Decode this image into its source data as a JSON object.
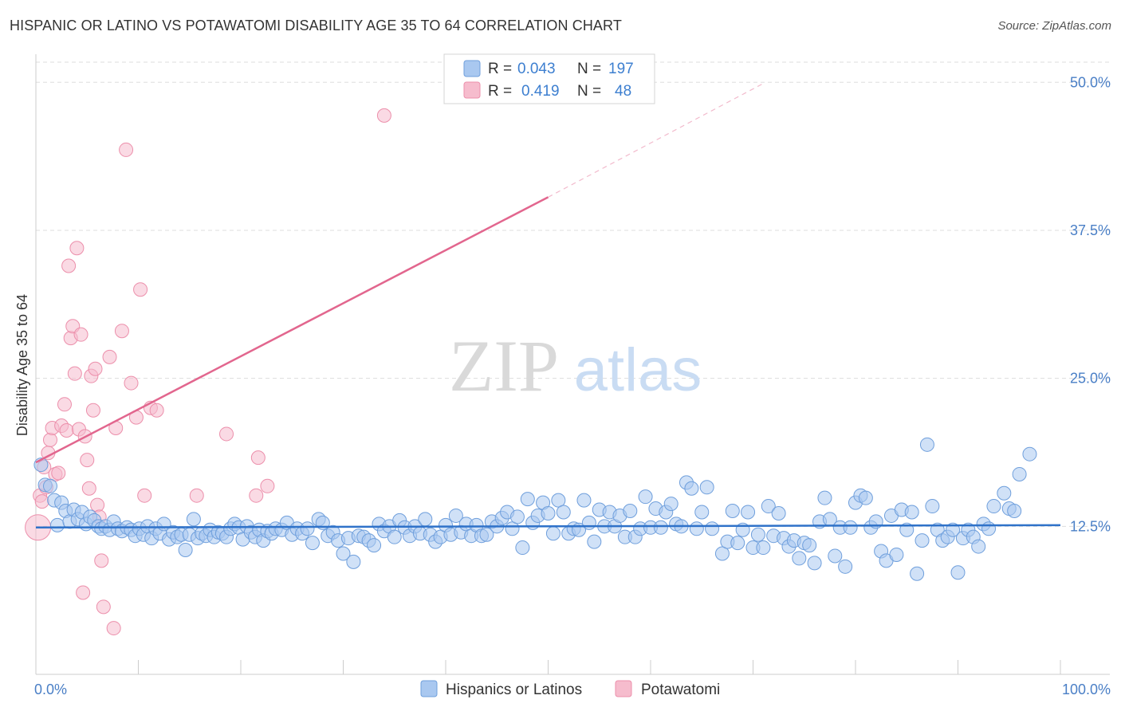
{
  "title": "HISPANIC OR LATINO VS POTAWATOMI DISABILITY AGE 35 TO 64 CORRELATION CHART",
  "source": "Source: ZipAtlas.com",
  "watermark": {
    "zip": "ZIP",
    "atlas": "atlas"
  },
  "colors": {
    "blue_fill": "#a9c8f0",
    "blue_stroke": "#6f9fdc",
    "blue_line": "#2f72c9",
    "pink_fill": "#f6bccd",
    "pink_stroke": "#ec8fab",
    "pink_line": "#e2668e",
    "tick_text": "#4a7fc6",
    "grid": "#dddddd"
  },
  "legend": {
    "r_label": "R =",
    "n_label": "N =",
    "rows": [
      {
        "r": "0.043",
        "n": "197"
      },
      {
        "r": "0.419",
        "n": "48"
      }
    ]
  },
  "bottom_legend": [
    "Hispanics or Latinos",
    "Potawatomi"
  ],
  "chart_data": {
    "type": "scatter",
    "ylabel": "Disability Age 35 to 64",
    "xlim": [
      0,
      100
    ],
    "ylim": [
      0,
      51.7
    ],
    "x_tick_labels": [
      {
        "value": 0,
        "label": "0.0%"
      },
      {
        "value": 100,
        "label": "100.0%"
      }
    ],
    "y_ticks": [
      {
        "value": 12.5,
        "label": "12.5%"
      },
      {
        "value": 25.0,
        "label": "25.0%"
      },
      {
        "value": 37.5,
        "label": "37.5%"
      },
      {
        "value": 50.0,
        "label": "50.0%"
      }
    ],
    "grid": true,
    "series": [
      {
        "name": "Hispanics or Latinos",
        "trend": {
          "x": [
            0,
            100
          ],
          "y": [
            12.4,
            12.6
          ]
        },
        "points": [
          [
            0.5,
            17.7
          ],
          [
            0.9,
            16
          ],
          [
            1.4,
            15.9
          ],
          [
            1.8,
            14.7
          ],
          [
            2.1,
            12.6
          ],
          [
            2.5,
            14.5
          ],
          [
            2.9,
            13.8
          ],
          [
            3.3,
            12.9
          ],
          [
            3.7,
            13.9
          ],
          [
            4.1,
            13.1
          ],
          [
            4.5,
            13.7
          ],
          [
            4.9,
            12.7
          ],
          [
            5.3,
            13.3
          ],
          [
            5.7,
            13
          ],
          [
            6.1,
            12.5
          ],
          [
            6.4,
            12.3
          ],
          [
            6.8,
            12.5
          ],
          [
            7.2,
            12.2
          ],
          [
            7.6,
            12.9
          ],
          [
            8.0,
            12.3
          ],
          [
            8.4,
            12.1
          ],
          [
            8.9,
            12.4
          ],
          [
            9.3,
            12.2
          ],
          [
            9.7,
            11.7
          ],
          [
            10.1,
            12.3
          ],
          [
            10.5,
            11.8
          ],
          [
            10.9,
            12.5
          ],
          [
            11.3,
            11.5
          ],
          [
            11.7,
            12.3
          ],
          [
            12.1,
            11.9
          ],
          [
            12.5,
            12.7
          ],
          [
            13.0,
            11.4
          ],
          [
            13.4,
            12
          ],
          [
            13.8,
            11.6
          ],
          [
            14.2,
            11.8
          ],
          [
            14.6,
            10.5
          ],
          [
            15.0,
            11.8
          ],
          [
            15.4,
            13.1
          ],
          [
            15.8,
            11.5
          ],
          [
            16.2,
            11.9
          ],
          [
            16.6,
            11.7
          ],
          [
            17.0,
            12.2
          ],
          [
            17.4,
            11.6
          ],
          [
            17.8,
            12
          ],
          [
            18.2,
            11.9
          ],
          [
            18.6,
            11.6
          ],
          [
            19.0,
            12.3
          ],
          [
            19.4,
            12.7
          ],
          [
            19.8,
            12.4
          ],
          [
            20.2,
            11.4
          ],
          [
            20.6,
            12.5
          ],
          [
            21.0,
            12
          ],
          [
            21.4,
            11.6
          ],
          [
            21.8,
            12.2
          ],
          [
            22.2,
            11.3
          ],
          [
            22.6,
            12.1
          ],
          [
            23.0,
            11.9
          ],
          [
            23.4,
            12.3
          ],
          [
            24.0,
            12.2
          ],
          [
            24.5,
            12.8
          ],
          [
            25.0,
            11.8
          ],
          [
            25.5,
            12.3
          ],
          [
            26.0,
            11.9
          ],
          [
            26.5,
            12.3
          ],
          [
            27.0,
            11.1
          ],
          [
            27.6,
            13.1
          ],
          [
            28.0,
            12.8
          ],
          [
            28.5,
            11.7
          ],
          [
            29.0,
            12
          ],
          [
            29.5,
            11.3
          ],
          [
            30.0,
            10.2
          ],
          [
            30.5,
            11.5
          ],
          [
            31.0,
            9.5
          ],
          [
            31.5,
            11.7
          ],
          [
            32.0,
            11.6
          ],
          [
            32.5,
            11.3
          ],
          [
            33.0,
            10.9
          ],
          [
            33.5,
            12.7
          ],
          [
            34.0,
            12.1
          ],
          [
            34.5,
            12.5
          ],
          [
            35.0,
            11.6
          ],
          [
            35.5,
            13
          ],
          [
            36.0,
            12.4
          ],
          [
            36.5,
            11.7
          ],
          [
            37.0,
            12.5
          ],
          [
            37.5,
            11.9
          ],
          [
            38.0,
            13.1
          ],
          [
            38.5,
            11.8
          ],
          [
            39.0,
            11.2
          ],
          [
            39.5,
            11.6
          ],
          [
            40.0,
            12.6
          ],
          [
            40.5,
            11.8
          ],
          [
            41.0,
            13.4
          ],
          [
            41.5,
            12
          ],
          [
            42.0,
            12.7
          ],
          [
            42.5,
            11.7
          ],
          [
            43.0,
            12.6
          ],
          [
            43.5,
            11.7
          ],
          [
            44.0,
            11.8
          ],
          [
            44.5,
            12.9
          ],
          [
            45.0,
            12.5
          ],
          [
            45.5,
            13.2
          ],
          [
            46.0,
            13.7
          ],
          [
            46.5,
            12.3
          ],
          [
            47.0,
            13.3
          ],
          [
            47.5,
            10.7
          ],
          [
            48.0,
            14.8
          ],
          [
            48.5,
            12.8
          ],
          [
            49.0,
            13.4
          ],
          [
            49.5,
            14.5
          ],
          [
            50.0,
            13.6
          ],
          [
            50.5,
            11.9
          ],
          [
            51.0,
            14.7
          ],
          [
            51.5,
            13.7
          ],
          [
            52.0,
            11.9
          ],
          [
            52.5,
            12.3
          ],
          [
            53.0,
            12.2
          ],
          [
            53.5,
            14.7
          ],
          [
            54.0,
            12.8
          ],
          [
            54.5,
            11.2
          ],
          [
            55.0,
            13.9
          ],
          [
            55.5,
            12.5
          ],
          [
            56.0,
            13.7
          ],
          [
            56.5,
            12.5
          ],
          [
            57.0,
            13.4
          ],
          [
            57.5,
            11.6
          ],
          [
            58.0,
            13.8
          ],
          [
            58.5,
            11.6
          ],
          [
            59.0,
            12.3
          ],
          [
            59.5,
            15
          ],
          [
            60.0,
            12.4
          ],
          [
            60.5,
            14
          ],
          [
            61.0,
            12.4
          ],
          [
            61.5,
            13.7
          ],
          [
            62.0,
            14.4
          ],
          [
            62.5,
            12.7
          ],
          [
            63.0,
            12.5
          ],
          [
            63.5,
            16.2
          ],
          [
            64.0,
            15.7
          ],
          [
            64.5,
            12.3
          ],
          [
            65.0,
            13.7
          ],
          [
            65.5,
            15.8
          ],
          [
            66.0,
            12.3
          ],
          [
            67.0,
            10.2
          ],
          [
            67.5,
            11.2
          ],
          [
            68.0,
            13.8
          ],
          [
            68.5,
            11.1
          ],
          [
            69.0,
            12.2
          ],
          [
            69.5,
            13.7
          ],
          [
            70.0,
            10.7
          ],
          [
            70.5,
            11.8
          ],
          [
            71.0,
            10.7
          ],
          [
            71.5,
            14.2
          ],
          [
            72.0,
            11.7
          ],
          [
            72.5,
            13.6
          ],
          [
            73.0,
            11.5
          ],
          [
            73.5,
            10.8
          ],
          [
            74.0,
            11.3
          ],
          [
            74.5,
            9.8
          ],
          [
            75.0,
            11.1
          ],
          [
            75.5,
            10.9
          ],
          [
            76.0,
            9.4
          ],
          [
            76.5,
            12.9
          ],
          [
            77.0,
            14.9
          ],
          [
            77.5,
            13.1
          ],
          [
            78.0,
            10
          ],
          [
            78.5,
            12.4
          ],
          [
            79.0,
            9.1
          ],
          [
            79.5,
            12.4
          ],
          [
            80.0,
            14.5
          ],
          [
            80.5,
            15.1
          ],
          [
            81.0,
            14.9
          ],
          [
            81.5,
            12.4
          ],
          [
            82.0,
            12.9
          ],
          [
            82.5,
            10.4
          ],
          [
            83.0,
            9.6
          ],
          [
            83.5,
            13.4
          ],
          [
            84.0,
            10.1
          ],
          [
            84.5,
            13.9
          ],
          [
            85.0,
            12.2
          ],
          [
            85.5,
            13.7
          ],
          [
            86.0,
            8.5
          ],
          [
            86.5,
            11.3
          ],
          [
            87.0,
            19.4
          ],
          [
            87.5,
            14.2
          ],
          [
            88.0,
            12.2
          ],
          [
            88.5,
            11.3
          ],
          [
            89.0,
            11.6
          ],
          [
            89.5,
            12.2
          ],
          [
            90.0,
            8.6
          ],
          [
            90.5,
            11.5
          ],
          [
            91.0,
            12.2
          ],
          [
            91.5,
            11.6
          ],
          [
            92.0,
            10.8
          ],
          [
            92.5,
            12.7
          ],
          [
            93.0,
            12.3
          ],
          [
            93.5,
            14.2
          ],
          [
            94.5,
            15.3
          ],
          [
            95.0,
            14
          ],
          [
            95.5,
            13.8
          ],
          [
            96.0,
            16.9
          ],
          [
            97.0,
            18.6
          ]
        ]
      },
      {
        "name": "Potawatomi",
        "trend": {
          "x": [
            0,
            50
          ],
          "y": [
            17.9,
            40.3
          ]
        },
        "trend_dashed": {
          "x": [
            50,
            71
          ],
          "y": [
            40.3,
            49.9
          ]
        },
        "points": [
          [
            0.2,
            12.4
          ],
          [
            0.4,
            15.1
          ],
          [
            0.6,
            14.6
          ],
          [
            0.8,
            17.5
          ],
          [
            1.0,
            15.8
          ],
          [
            1.2,
            18.7
          ],
          [
            1.4,
            19.8
          ],
          [
            1.6,
            20.8
          ],
          [
            1.9,
            16.9
          ],
          [
            2.2,
            17
          ],
          [
            2.5,
            21
          ],
          [
            2.8,
            22.8
          ],
          [
            3.0,
            20.6
          ],
          [
            3.2,
            34.5
          ],
          [
            3.4,
            28.4
          ],
          [
            3.6,
            29.4
          ],
          [
            3.8,
            25.4
          ],
          [
            4.0,
            36
          ],
          [
            4.2,
            20.7
          ],
          [
            4.4,
            28.7
          ],
          [
            4.6,
            6.9
          ],
          [
            4.8,
            20.1
          ],
          [
            5.0,
            18.1
          ],
          [
            5.2,
            15.7
          ],
          [
            5.4,
            25.2
          ],
          [
            5.6,
            22.3
          ],
          [
            5.8,
            25.8
          ],
          [
            6.0,
            14.3
          ],
          [
            6.2,
            13.3
          ],
          [
            6.4,
            9.6
          ],
          [
            6.6,
            5.7
          ],
          [
            7.2,
            26.8
          ],
          [
            7.6,
            3.9
          ],
          [
            7.8,
            20.8
          ],
          [
            8.4,
            29
          ],
          [
            8.8,
            44.3
          ],
          [
            9.3,
            24.6
          ],
          [
            9.8,
            21.7
          ],
          [
            10.2,
            32.5
          ],
          [
            10.6,
            15.1
          ],
          [
            11.2,
            22.5
          ],
          [
            11.8,
            22.3
          ],
          [
            15.7,
            15.1
          ],
          [
            18.6,
            20.3
          ],
          [
            21.5,
            15.1
          ],
          [
            21.7,
            18.3
          ],
          [
            22.6,
            15.9
          ],
          [
            34.0,
            47.2
          ]
        ]
      }
    ]
  }
}
